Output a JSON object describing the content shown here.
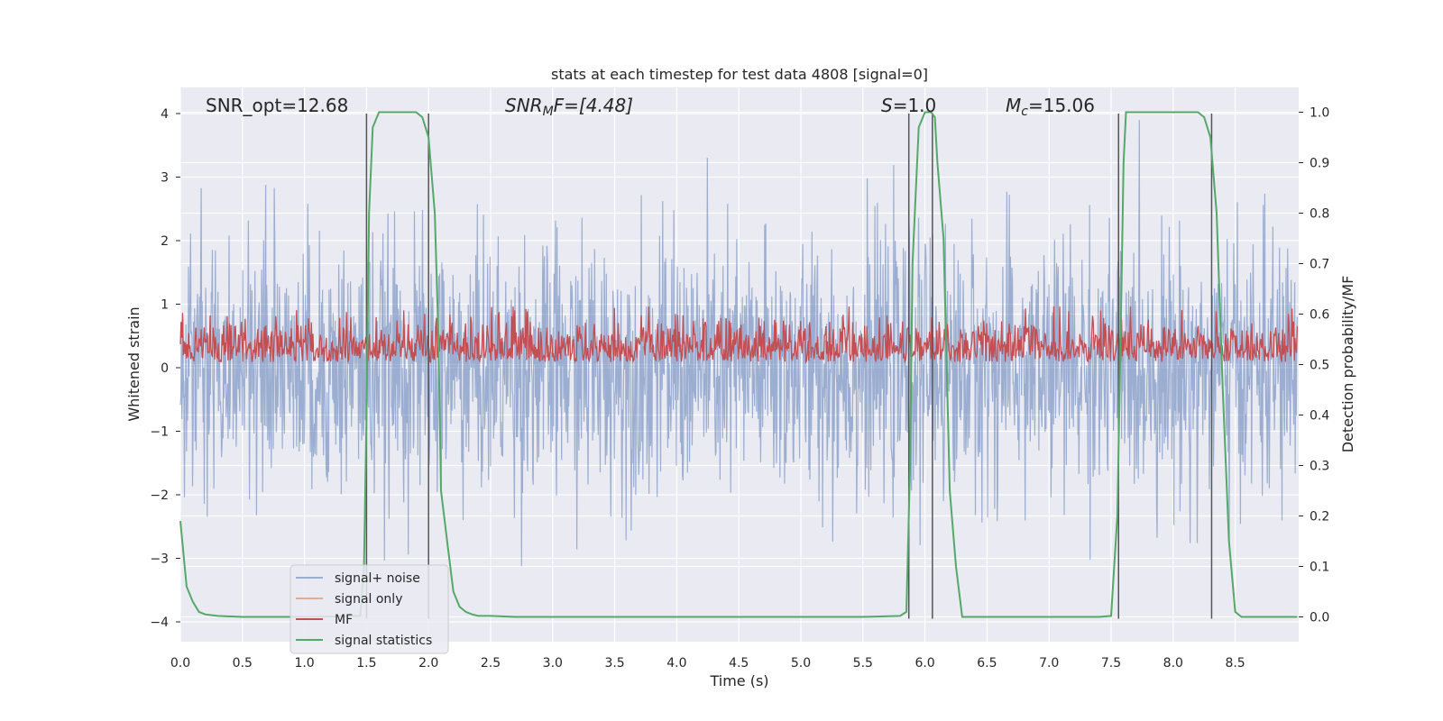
{
  "chart_data": {
    "type": "line",
    "title": "stats at each timestep for test data 4808 [signal=0]",
    "xlabel": "Time (s)",
    "ylabel": "Whitened strain",
    "ylabel_right": "Detection probability/MF",
    "xlim": [
      0,
      9.0
    ],
    "ylim": [
      -4.3,
      4.4
    ],
    "ylim_right": [
      -0.05,
      1.03
    ],
    "x_ticks": [
      "0.0",
      "0.5",
      "1.0",
      "1.5",
      "2.0",
      "2.5",
      "3.0",
      "3.5",
      "4.0",
      "4.5",
      "5.0",
      "5.5",
      "6.0",
      "6.5",
      "7.0",
      "7.5",
      "8.0",
      "8.5"
    ],
    "y_ticks": [
      "4",
      "3",
      "2",
      "1",
      "0",
      "−1",
      "−2",
      "−3",
      "−4"
    ],
    "y_right_ticks": [
      "1.0",
      "0.9",
      "0.8",
      "0.7",
      "0.6",
      "0.5",
      "0.4",
      "0.3",
      "0.2",
      "0.1",
      "0.0"
    ],
    "grid": true,
    "legend_position": "lower-left",
    "annotations": {
      "snr_opt": "SNR_opt=12.68",
      "snr_mf_main": "SNR",
      "snr_mf_sub": "M",
      "snr_mf_rest": "F=[4.48]",
      "s_italic": "S",
      "s_rest": "=1.0",
      "mc_main": "M",
      "mc_sub": "c",
      "mc_rest": "=15.06"
    },
    "vertical_lines_x": [
      1.5,
      2.0,
      5.87,
      6.06,
      7.56,
      8.31
    ],
    "series": [
      {
        "name": "signal+ noise",
        "color": "#4c72b0",
        "axis": "left",
        "envelope": "noise"
      },
      {
        "name": "signal only",
        "color": "#dd8452",
        "axis": "left"
      },
      {
        "name": "MF",
        "color": "#c44e52",
        "axis": "right"
      },
      {
        "name": "signal statistics",
        "color": "#55a868",
        "axis": "right",
        "x": [
          0.0,
          0.05,
          0.1,
          0.15,
          0.2,
          0.3,
          0.5,
          1.0,
          1.45,
          1.48,
          1.5,
          1.52,
          1.55,
          1.6,
          1.65,
          1.7,
          1.8,
          1.9,
          1.95,
          2.0,
          2.05,
          2.08,
          2.1,
          2.15,
          2.2,
          2.25,
          2.3,
          2.35,
          2.4,
          2.5,
          2.7,
          3.0,
          4.0,
          5.0,
          5.5,
          5.8,
          5.85,
          5.88,
          5.9,
          5.95,
          6.0,
          6.05,
          6.08,
          6.1,
          6.15,
          6.2,
          6.25,
          6.3,
          6.5,
          7.0,
          7.4,
          7.5,
          7.55,
          7.58,
          7.6,
          7.62,
          7.65,
          7.7,
          8.0,
          8.2,
          8.25,
          8.3,
          8.35,
          8.4,
          8.45,
          8.5,
          8.55,
          8.7,
          9.0
        ],
        "y": [
          0.19,
          0.06,
          0.03,
          0.01,
          0.005,
          0.002,
          0.0,
          0.0,
          0.002,
          0.1,
          0.4,
          0.8,
          0.97,
          1.0,
          1.0,
          1.0,
          1.0,
          1.0,
          0.99,
          0.95,
          0.8,
          0.55,
          0.25,
          0.15,
          0.05,
          0.02,
          0.01,
          0.005,
          0.002,
          0.002,
          0.0,
          0.0,
          0.0,
          0.0,
          0.0,
          0.002,
          0.01,
          0.3,
          0.7,
          0.97,
          1.0,
          1.0,
          0.99,
          0.9,
          0.75,
          0.25,
          0.1,
          0.0,
          0.0,
          0.0,
          0.0,
          0.002,
          0.2,
          0.6,
          0.9,
          1.0,
          1.0,
          1.0,
          1.0,
          1.0,
          0.99,
          0.95,
          0.8,
          0.45,
          0.15,
          0.01,
          0.0,
          0.0,
          0.0
        ]
      }
    ]
  }
}
